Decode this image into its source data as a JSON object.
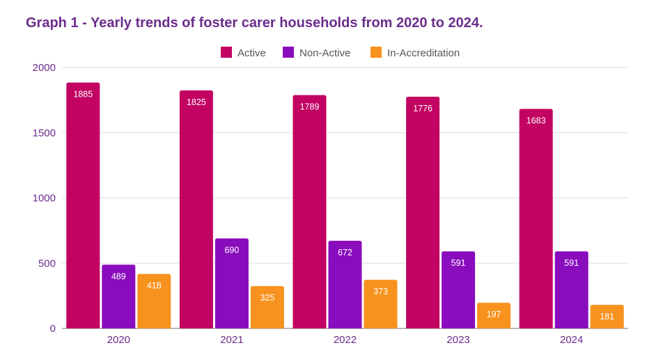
{
  "chart_data": {
    "type": "bar",
    "title": "Graph 1 - Yearly trends of foster carer households from 2020 to 2024.",
    "categories": [
      "2020",
      "2021",
      "2022",
      "2023",
      "2024"
    ],
    "series": [
      {
        "name": "Active",
        "color": "#c20362",
        "values": [
          1885,
          1825,
          1789,
          1776,
          1683
        ]
      },
      {
        "name": "Non-Active",
        "color": "#8a0dbd",
        "values": [
          489,
          690,
          672,
          591,
          591
        ]
      },
      {
        "name": "In-Accreditation",
        "color": "#f7921e",
        "values": [
          418,
          325,
          373,
          197,
          181
        ]
      }
    ],
    "ylim": [
      0,
      2000
    ],
    "yticks": [
      "0",
      "500",
      "1000",
      "1500",
      "2000"
    ],
    "grid": true,
    "legend": "top"
  }
}
